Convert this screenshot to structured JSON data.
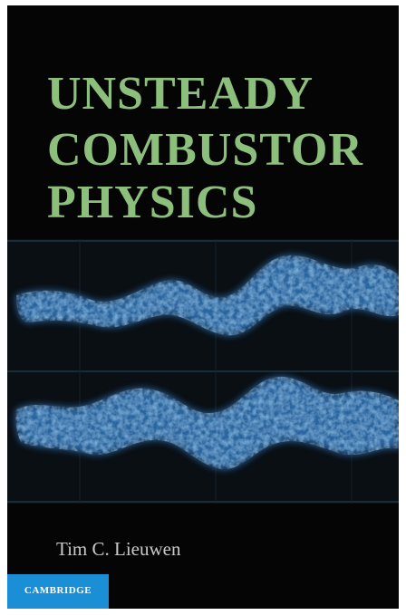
{
  "cover": {
    "title_lines": [
      "UNSTEADY",
      "COMBUSTOR",
      "PHYSICS"
    ],
    "author": "Tim C. Lieuwen",
    "publisher": "CAMBRIDGE"
  }
}
